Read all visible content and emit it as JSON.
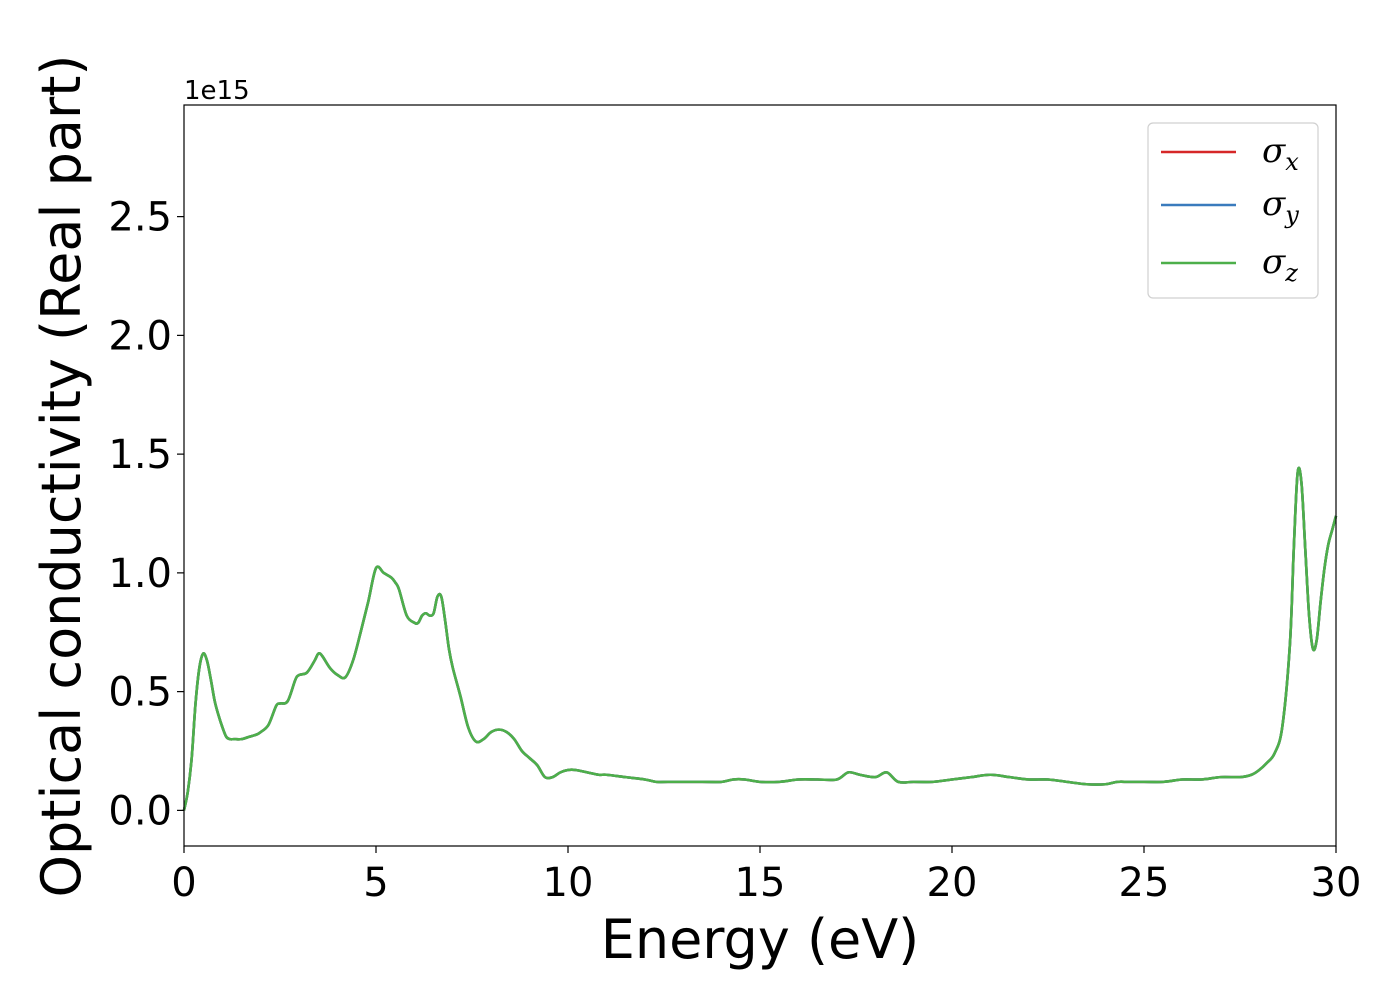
{
  "chart_data": {
    "type": "line",
    "title": "",
    "xlabel": "Energy (eV)",
    "ylabel": "Optical conductivity (Real part)",
    "y_offset_label": "1e15",
    "xlim": [
      0,
      30
    ],
    "ylim": [
      -0.15,
      2.97
    ],
    "x_ticks": [
      0,
      5,
      10,
      15,
      20,
      25,
      30
    ],
    "x_tick_labels": [
      "0",
      "5",
      "10",
      "15",
      "20",
      "25",
      "30"
    ],
    "y_ticks": [
      0.0,
      0.5,
      1.0,
      1.5,
      2.0,
      2.5
    ],
    "y_tick_labels": [
      "0.0",
      "0.5",
      "1.0",
      "1.5",
      "2.0",
      "2.5"
    ],
    "grid": false,
    "legend_position": "top-right",
    "x": [
      0,
      0.1,
      0.2,
      0.3,
      0.4,
      0.5,
      0.6,
      0.7,
      0.8,
      0.9,
      1.0,
      1.1,
      1.2,
      1.3,
      1.5,
      1.7,
      1.9,
      2.0,
      2.2,
      2.4,
      2.5,
      2.7,
      2.9,
      3.0,
      3.2,
      3.4,
      3.5,
      3.6,
      3.8,
      4.0,
      4.2,
      4.4,
      4.6,
      4.8,
      5.0,
      5.2,
      5.4,
      5.5,
      5.6,
      5.8,
      6.0,
      6.1,
      6.2,
      6.3,
      6.4,
      6.5,
      6.6,
      6.7,
      6.8,
      6.9,
      7.0,
      7.2,
      7.4,
      7.6,
      7.8,
      8.0,
      8.2,
      8.4,
      8.6,
      8.8,
      9.0,
      9.2,
      9.4,
      9.6,
      9.8,
      10.0,
      10.2,
      10.5,
      10.8,
      11.0,
      11.5,
      12.0,
      12.3,
      12.6,
      13.0,
      13.5,
      14.0,
      14.3,
      14.6,
      15.0,
      15.5,
      16.0,
      16.5,
      17.0,
      17.3,
      17.6,
      18.0,
      18.3,
      18.6,
      19.0,
      19.5,
      20.0,
      20.5,
      21.0,
      21.5,
      22.0,
      22.5,
      23.0,
      23.5,
      24.0,
      24.3,
      24.6,
      25.0,
      25.5,
      26.0,
      26.5,
      27.0,
      27.5,
      27.8,
      28.0,
      28.2,
      28.4,
      28.6,
      28.8,
      28.9,
      29.0,
      29.1,
      29.2,
      29.3,
      29.4,
      29.5,
      29.6,
      29.7,
      29.8,
      29.9,
      30.0
    ],
    "series": [
      {
        "name": "σx",
        "color": "#d62728",
        "values": [
          0.0,
          0.08,
          0.22,
          0.45,
          0.6,
          0.66,
          0.63,
          0.55,
          0.46,
          0.4,
          0.35,
          0.31,
          0.3,
          0.3,
          0.3,
          0.31,
          0.32,
          0.33,
          0.36,
          0.44,
          0.45,
          0.46,
          0.55,
          0.57,
          0.58,
          0.63,
          0.66,
          0.65,
          0.6,
          0.57,
          0.56,
          0.63,
          0.75,
          0.88,
          1.02,
          1.0,
          0.98,
          0.96,
          0.93,
          0.82,
          0.79,
          0.79,
          0.82,
          0.83,
          0.82,
          0.83,
          0.9,
          0.9,
          0.8,
          0.68,
          0.6,
          0.48,
          0.35,
          0.29,
          0.3,
          0.33,
          0.34,
          0.33,
          0.3,
          0.25,
          0.22,
          0.19,
          0.14,
          0.14,
          0.16,
          0.17,
          0.17,
          0.16,
          0.15,
          0.15,
          0.14,
          0.13,
          0.12,
          0.12,
          0.12,
          0.12,
          0.12,
          0.13,
          0.13,
          0.12,
          0.12,
          0.13,
          0.13,
          0.13,
          0.16,
          0.15,
          0.14,
          0.16,
          0.12,
          0.12,
          0.12,
          0.13,
          0.14,
          0.15,
          0.14,
          0.13,
          0.13,
          0.12,
          0.11,
          0.11,
          0.12,
          0.12,
          0.12,
          0.12,
          0.13,
          0.13,
          0.14,
          0.14,
          0.15,
          0.17,
          0.2,
          0.24,
          0.35,
          0.7,
          1.1,
          1.42,
          1.38,
          1.1,
          0.82,
          0.68,
          0.72,
          0.88,
          1.02,
          1.12,
          1.18,
          1.24
        ]
      },
      {
        "name": "σy",
        "color": "#3a7bbd",
        "values": [
          0.0,
          0.08,
          0.22,
          0.45,
          0.6,
          0.66,
          0.63,
          0.55,
          0.46,
          0.4,
          0.35,
          0.31,
          0.3,
          0.3,
          0.3,
          0.31,
          0.32,
          0.33,
          0.36,
          0.44,
          0.45,
          0.46,
          0.55,
          0.57,
          0.58,
          0.63,
          0.66,
          0.65,
          0.6,
          0.57,
          0.56,
          0.63,
          0.75,
          0.88,
          1.02,
          1.0,
          0.98,
          0.96,
          0.93,
          0.82,
          0.79,
          0.79,
          0.82,
          0.83,
          0.82,
          0.83,
          0.9,
          0.9,
          0.8,
          0.68,
          0.6,
          0.48,
          0.35,
          0.29,
          0.3,
          0.33,
          0.34,
          0.33,
          0.3,
          0.25,
          0.22,
          0.19,
          0.14,
          0.14,
          0.16,
          0.17,
          0.17,
          0.16,
          0.15,
          0.15,
          0.14,
          0.13,
          0.12,
          0.12,
          0.12,
          0.12,
          0.12,
          0.13,
          0.13,
          0.12,
          0.12,
          0.13,
          0.13,
          0.13,
          0.16,
          0.15,
          0.14,
          0.16,
          0.12,
          0.12,
          0.12,
          0.13,
          0.14,
          0.15,
          0.14,
          0.13,
          0.13,
          0.12,
          0.11,
          0.11,
          0.12,
          0.12,
          0.12,
          0.12,
          0.13,
          0.13,
          0.14,
          0.14,
          0.15,
          0.17,
          0.2,
          0.24,
          0.35,
          0.7,
          1.1,
          1.42,
          1.38,
          1.1,
          0.82,
          0.68,
          0.72,
          0.88,
          1.02,
          1.12,
          1.18,
          1.24
        ]
      },
      {
        "name": "σz",
        "color": "#4daf4a",
        "values": [
          0.0,
          0.08,
          0.22,
          0.45,
          0.6,
          0.66,
          0.63,
          0.55,
          0.46,
          0.4,
          0.35,
          0.31,
          0.3,
          0.3,
          0.3,
          0.31,
          0.32,
          0.33,
          0.36,
          0.44,
          0.45,
          0.46,
          0.55,
          0.57,
          0.58,
          0.63,
          0.66,
          0.65,
          0.6,
          0.57,
          0.56,
          0.63,
          0.75,
          0.88,
          1.02,
          1.0,
          0.98,
          0.96,
          0.93,
          0.82,
          0.79,
          0.79,
          0.82,
          0.83,
          0.82,
          0.83,
          0.9,
          0.9,
          0.8,
          0.68,
          0.6,
          0.48,
          0.35,
          0.29,
          0.3,
          0.33,
          0.34,
          0.33,
          0.3,
          0.25,
          0.22,
          0.19,
          0.14,
          0.14,
          0.16,
          0.17,
          0.17,
          0.16,
          0.15,
          0.15,
          0.14,
          0.13,
          0.12,
          0.12,
          0.12,
          0.12,
          0.12,
          0.13,
          0.13,
          0.12,
          0.12,
          0.13,
          0.13,
          0.13,
          0.16,
          0.15,
          0.14,
          0.16,
          0.12,
          0.12,
          0.12,
          0.13,
          0.14,
          0.15,
          0.14,
          0.13,
          0.13,
          0.12,
          0.11,
          0.11,
          0.12,
          0.12,
          0.12,
          0.12,
          0.13,
          0.13,
          0.14,
          0.14,
          0.15,
          0.17,
          0.2,
          0.24,
          0.35,
          0.7,
          1.1,
          1.42,
          1.38,
          1.1,
          0.82,
          0.68,
          0.72,
          0.88,
          1.02,
          1.12,
          1.18,
          1.24
        ]
      }
    ]
  }
}
